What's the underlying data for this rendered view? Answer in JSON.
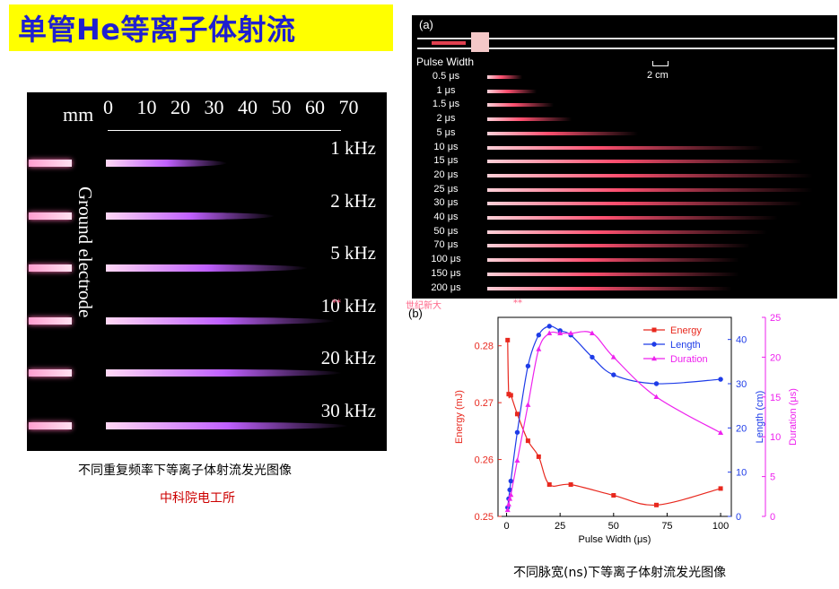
{
  "slide": {
    "title": "单管He等离子体射流",
    "left_caption": "不同重复频率下等离子体射流发光图像",
    "source": "中科院电工所",
    "right_caption": "不同脉宽(ns)下等离子体射流发光图像",
    "watermark": "世纪新大",
    "marks": "**"
  },
  "left_image": {
    "scale_unit": "mm",
    "scale_ticks": [
      "0",
      "10",
      "20",
      "30",
      "40",
      "50",
      "60",
      "70"
    ],
    "frequencies": [
      "1 kHz",
      "2 kHz",
      "5 kHz",
      "10 kHz",
      "20 kHz",
      "30 kHz"
    ],
    "electrode_label": "Ground electrode",
    "jet_length_mm": [
      36,
      50,
      60,
      68,
      70,
      72
    ]
  },
  "right_image": {
    "panel_label": "(a)",
    "pulse_width_header": "Pulse Width",
    "scale_bar": "2 cm",
    "pulse_widths": [
      "0.5 μs",
      "1 μs",
      "1.5 μs",
      "2 μs",
      "5 μs",
      "10 μs",
      "15 μs",
      "20 μs",
      "25 μs",
      "30 μs",
      "40 μs",
      "50 μs",
      "70 μs",
      "100 μs",
      "150 μs",
      "200 μs"
    ],
    "jet_length_fraction": [
      0.1,
      0.14,
      0.19,
      0.24,
      0.43,
      0.79,
      0.9,
      0.93,
      0.93,
      0.9,
      0.83,
      0.8,
      0.75,
      0.72,
      0.72,
      0.7
    ]
  },
  "chart_data": {
    "type": "line",
    "panel_label": "(b)",
    "xlabel": "Pulse Width (μs)",
    "xlim": [
      -4,
      105
    ],
    "xticks": [
      0,
      25,
      50,
      75,
      100
    ],
    "axes": [
      {
        "label": "Energy (mJ)",
        "color": "#e8281e",
        "ylim": [
          0.25,
          0.285
        ],
        "ticks": [
          "0.25",
          "0.26",
          "0.27",
          "0.28"
        ],
        "tick_values": [
          0.25,
          0.26,
          0.27,
          0.28
        ]
      },
      {
        "label": "Length (cm)",
        "color": "#1e3ce8",
        "ylim": [
          0,
          45
        ],
        "ticks": [
          "0",
          "10",
          "20",
          "30",
          "40"
        ],
        "tick_values": [
          0,
          10,
          20,
          30,
          40
        ]
      },
      {
        "label": "Duration (μs)",
        "color": "#ee22ee",
        "ylim": [
          0,
          25
        ],
        "ticks": [
          "0",
          "5",
          "10",
          "15",
          "20",
          "25"
        ],
        "tick_values": [
          0,
          5,
          10,
          15,
          20,
          25
        ]
      }
    ],
    "series": [
      {
        "name": "Energy",
        "axis": 0,
        "marker": "square",
        "color": "#e8281e",
        "x": [
          0.5,
          1,
          2,
          5,
          10,
          15,
          20,
          30,
          50,
          70,
          100
        ],
        "y": [
          0.281,
          0.2715,
          0.2713,
          0.268,
          0.2633,
          0.2605,
          0.2556,
          0.2556,
          0.2537,
          0.252,
          0.2549
        ]
      },
      {
        "name": "Length",
        "axis": 1,
        "marker": "circle",
        "color": "#1e3ce8",
        "x": [
          0.5,
          1,
          1.5,
          2,
          5,
          10,
          15,
          20,
          25,
          30,
          40,
          50,
          70,
          100
        ],
        "y": [
          2,
          4,
          6,
          8,
          19,
          34,
          41,
          43,
          42,
          41,
          36,
          32,
          30,
          31
        ]
      },
      {
        "name": "Duration",
        "axis": 2,
        "marker": "triangle",
        "color": "#ee22ee",
        "x": [
          0.5,
          1,
          1.5,
          2,
          5,
          10,
          15,
          20,
          25,
          30,
          40,
          50,
          70,
          100
        ],
        "y": [
          0.8,
          1.5,
          2.2,
          2.7,
          7,
          14,
          21,
          23,
          23,
          23,
          23,
          20,
          15,
          10.5
        ]
      }
    ]
  }
}
